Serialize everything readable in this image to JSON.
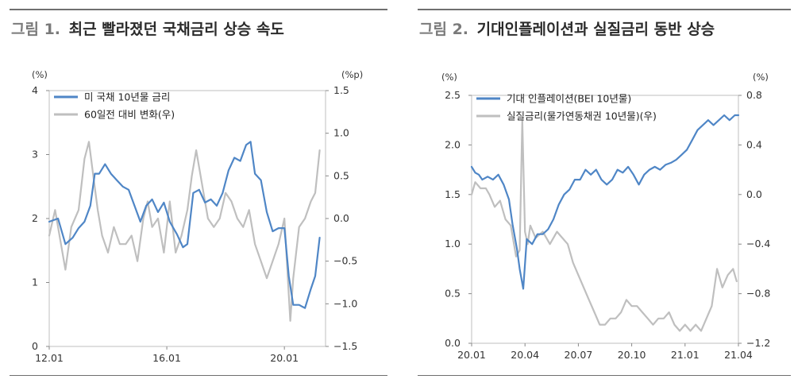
{
  "figures": [
    {
      "number": "그림 1.",
      "title": "최근 빨라졌던 국채금리 상승 속도"
    },
    {
      "number": "그림 2.",
      "title": "기대인플레이션과 실질금리 동반 상승"
    }
  ],
  "chart_data": [
    {
      "type": "line",
      "title": "최근 빨라졌던 국채금리 상승 속도",
      "left_unit": "(%)",
      "right_unit": "(%p)",
      "x_tick_labels": [
        "12.01",
        "16.01",
        "20.01"
      ],
      "left_ylim": [
        0,
        4
      ],
      "left_yticks": [
        "0",
        "1",
        "2",
        "3",
        "4"
      ],
      "right_ylim": [
        -1.5,
        1.5
      ],
      "right_yticks": [
        "−1.5",
        "−1.0",
        "−0.5",
        "0.0",
        "0.5",
        "1.0",
        "1.5"
      ],
      "legend_position": "top-left",
      "grid": false,
      "series": [
        {
          "name": "미 국채 10년물 금리",
          "axis": "left",
          "color": "#4f86c6",
          "x": [
            2012.0,
            2012.3,
            2012.55,
            2012.8,
            2013.0,
            2013.2,
            2013.4,
            2013.55,
            2013.7,
            2013.9,
            2014.1,
            2014.3,
            2014.5,
            2014.7,
            2014.9,
            2015.1,
            2015.3,
            2015.5,
            2015.7,
            2015.9,
            2016.1,
            2016.35,
            2016.55,
            2016.7,
            2016.9,
            2017.1,
            2017.3,
            2017.5,
            2017.7,
            2017.9,
            2018.1,
            2018.3,
            2018.5,
            2018.7,
            2018.85,
            2019.0,
            2019.2,
            2019.4,
            2019.6,
            2019.8,
            2020.0,
            2020.15,
            2020.3,
            2020.5,
            2020.7,
            2020.9,
            2021.05,
            2021.2
          ],
          "y": [
            1.95,
            2.0,
            1.6,
            1.7,
            1.85,
            1.95,
            2.2,
            2.7,
            2.7,
            2.85,
            2.7,
            2.6,
            2.5,
            2.45,
            2.2,
            1.95,
            2.2,
            2.3,
            2.1,
            2.25,
            1.95,
            1.75,
            1.55,
            1.6,
            2.4,
            2.45,
            2.25,
            2.3,
            2.2,
            2.4,
            2.75,
            2.95,
            2.9,
            3.15,
            3.2,
            2.7,
            2.6,
            2.1,
            1.8,
            1.85,
            1.85,
            1.1,
            0.65,
            0.65,
            0.6,
            0.9,
            1.1,
            1.7
          ]
        },
        {
          "name": "60일전 대비 변화(우)",
          "axis": "right",
          "color": "#bfbfbf",
          "x": [
            2012.0,
            2012.2,
            2012.4,
            2012.55,
            2012.75,
            2013.0,
            2013.2,
            2013.35,
            2013.5,
            2013.65,
            2013.8,
            2014.0,
            2014.2,
            2014.4,
            2014.6,
            2014.8,
            2015.0,
            2015.2,
            2015.35,
            2015.5,
            2015.7,
            2015.9,
            2016.1,
            2016.3,
            2016.5,
            2016.7,
            2016.85,
            2017.0,
            2017.2,
            2017.4,
            2017.6,
            2017.8,
            2018.0,
            2018.2,
            2018.4,
            2018.6,
            2018.8,
            2019.0,
            2019.2,
            2019.4,
            2019.6,
            2019.8,
            2020.0,
            2020.1,
            2020.2,
            2020.3,
            2020.5,
            2020.7,
            2020.9,
            2021.05,
            2021.2
          ],
          "y": [
            -0.2,
            0.1,
            -0.3,
            -0.6,
            -0.1,
            0.1,
            0.7,
            0.9,
            0.5,
            0.1,
            -0.2,
            -0.4,
            -0.1,
            -0.3,
            -0.3,
            -0.2,
            -0.5,
            0.0,
            0.2,
            -0.1,
            0.0,
            -0.4,
            0.2,
            -0.4,
            -0.2,
            0.1,
            0.5,
            0.8,
            0.4,
            0.0,
            -0.1,
            0.0,
            0.3,
            0.2,
            0.0,
            -0.1,
            0.1,
            -0.3,
            -0.5,
            -0.7,
            -0.5,
            -0.3,
            0.0,
            -0.6,
            -1.2,
            -0.7,
            -0.1,
            0.0,
            0.2,
            0.3,
            0.8
          ]
        }
      ]
    },
    {
      "type": "line",
      "title": "기대인플레이션과 실질금리 동반 상승",
      "left_unit": "(%)",
      "right_unit": "(%)",
      "x_tick_labels": [
        "20.01",
        "20.04",
        "20.07",
        "20.10",
        "21.01",
        "21.04"
      ],
      "left_ylim": [
        0.0,
        2.5
      ],
      "left_yticks": [
        "0.0",
        "0.5",
        "1.0",
        "1.5",
        "2.0",
        "2.5"
      ],
      "right_ylim": [
        -1.2,
        0.8
      ],
      "right_yticks": [
        "−1.2",
        "−0.8",
        "−0.4",
        "0.0",
        "0.4",
        "0.8"
      ],
      "legend_position": "top-left",
      "grid": false,
      "series": [
        {
          "name": "기대 인플레이션(BEI 10년물)",
          "axis": "left",
          "color": "#4f86c6",
          "x": [
            0,
            0.2,
            0.4,
            0.6,
            0.9,
            1.2,
            1.5,
            1.8,
            2.1,
            2.3,
            2.55,
            2.7,
            2.9,
            3.1,
            3.4,
            3.7,
            4.0,
            4.3,
            4.6,
            4.9,
            5.2,
            5.5,
            5.8,
            6.1,
            6.4,
            6.7,
            7.0,
            7.3,
            7.6,
            7.9,
            8.2,
            8.5,
            8.8,
            9.1,
            9.4,
            9.7,
            10.0,
            10.3,
            10.6,
            10.9,
            11.2,
            11.5,
            11.8,
            12.1,
            12.4,
            12.7,
            13.0,
            13.3,
            13.6,
            13.9,
            14.2,
            14.5,
            14.8,
            15.0
          ],
          "y": [
            1.78,
            1.72,
            1.7,
            1.65,
            1.68,
            1.65,
            1.7,
            1.6,
            1.45,
            1.2,
            0.95,
            0.75,
            0.55,
            1.05,
            1.0,
            1.1,
            1.1,
            1.15,
            1.25,
            1.4,
            1.5,
            1.55,
            1.65,
            1.65,
            1.75,
            1.7,
            1.75,
            1.65,
            1.6,
            1.65,
            1.75,
            1.72,
            1.78,
            1.7,
            1.6,
            1.7,
            1.75,
            1.78,
            1.75,
            1.8,
            1.82,
            1.85,
            1.9,
            1.95,
            2.05,
            2.15,
            2.2,
            2.25,
            2.2,
            2.25,
            2.3,
            2.25,
            2.3,
            2.3
          ]
        },
        {
          "name": "실질금리(물가연동채권 10년물)(우)",
          "axis": "right",
          "color": "#bfbfbf",
          "x": [
            0,
            0.2,
            0.5,
            0.8,
            1.0,
            1.3,
            1.6,
            1.9,
            2.2,
            2.5,
            2.7,
            2.85,
            3.0,
            3.15,
            3.3,
            3.6,
            4.0,
            4.4,
            4.8,
            5.1,
            5.4,
            5.7,
            6.0,
            6.3,
            6.6,
            6.9,
            7.2,
            7.5,
            7.8,
            8.1,
            8.4,
            8.7,
            9.0,
            9.3,
            9.6,
            9.9,
            10.2,
            10.5,
            10.8,
            11.1,
            11.4,
            11.7,
            12.0,
            12.3,
            12.6,
            12.9,
            13.2,
            13.5,
            13.8,
            14.1,
            14.4,
            14.7,
            14.9
          ],
          "y": [
            0.0,
            0.1,
            0.05,
            0.05,
            0.0,
            -0.1,
            -0.05,
            -0.2,
            -0.25,
            -0.5,
            -0.45,
            0.6,
            -0.3,
            -0.4,
            -0.25,
            -0.35,
            -0.3,
            -0.4,
            -0.3,
            -0.35,
            -0.4,
            -0.55,
            -0.65,
            -0.75,
            -0.85,
            -0.95,
            -1.05,
            -1.05,
            -1.0,
            -1.0,
            -0.95,
            -0.85,
            -0.9,
            -0.9,
            -0.95,
            -1.0,
            -1.05,
            -1.0,
            -1.0,
            -0.95,
            -1.05,
            -1.1,
            -1.05,
            -1.1,
            -1.05,
            -1.1,
            -1.0,
            -0.9,
            -0.6,
            -0.75,
            -0.65,
            -0.6,
            -0.7
          ]
        }
      ]
    }
  ]
}
